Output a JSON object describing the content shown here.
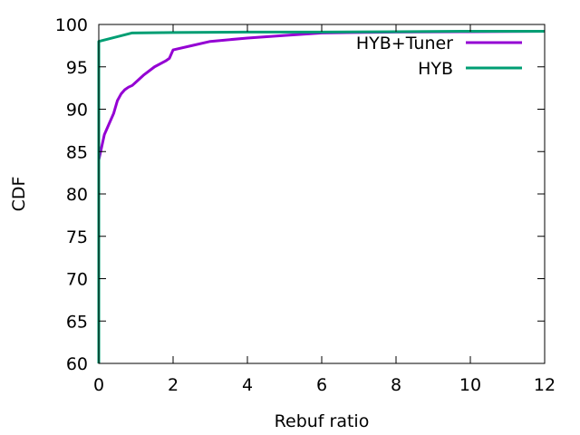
{
  "chart_data": {
    "type": "line",
    "xlabel": "Rebuf ratio",
    "ylabel": "CDF",
    "xlim": [
      0,
      12
    ],
    "ylim": [
      60,
      100
    ],
    "xticks": [
      0,
      2,
      4,
      6,
      8,
      10,
      12
    ],
    "yticks": [
      60,
      65,
      70,
      75,
      80,
      85,
      90,
      95,
      100
    ],
    "grid": false,
    "legend_position": "top-right",
    "series": [
      {
        "name": "HYB+Tuner",
        "color": "#9400d3",
        "x": [
          0,
          0.05,
          0.1,
          0.15,
          0.2,
          0.3,
          0.4,
          0.5,
          0.6,
          0.7,
          0.8,
          0.9,
          1.0,
          1.2,
          1.5,
          1.8,
          1.9,
          2.0,
          2.5,
          3.0,
          4.0,
          5.0,
          6.0,
          8.0,
          10.0,
          12.0
        ],
        "y": [
          84,
          85,
          86,
          87,
          87.5,
          88.5,
          89.5,
          91,
          91.8,
          92.3,
          92.6,
          92.8,
          93.2,
          94,
          95,
          95.7,
          96,
          97,
          97.5,
          98,
          98.4,
          98.7,
          99,
          99.1,
          99.15,
          99.2
        ]
      },
      {
        "name": "HYB",
        "color": "#009e73",
        "x": [
          0,
          0,
          0.9,
          2,
          4,
          6,
          8,
          10,
          12
        ],
        "y": [
          60,
          98,
          99,
          99.05,
          99.1,
          99.1,
          99.15,
          99.2,
          99.2
        ]
      }
    ]
  }
}
